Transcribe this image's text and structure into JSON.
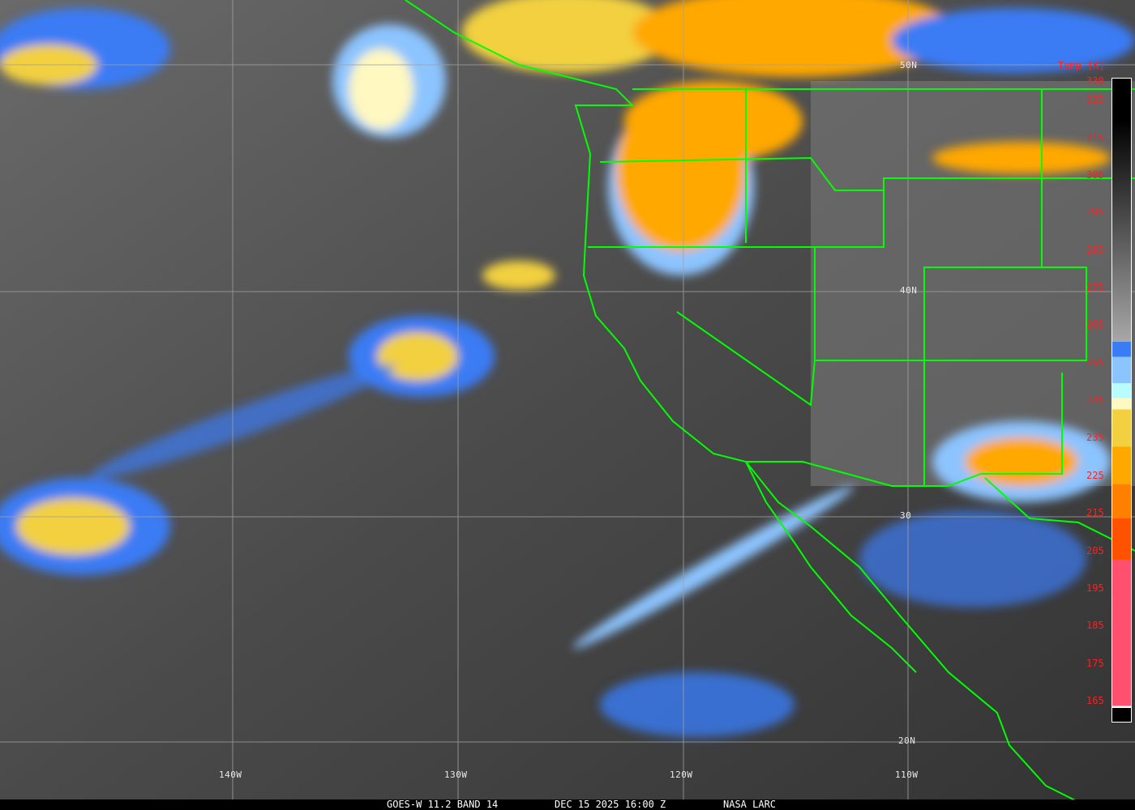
{
  "caption": {
    "satellite": "GOES-W 11.2 BAND 14",
    "datetime": "DEC 15 2025 16:00 Z",
    "source": "NASA LARC"
  },
  "colorbar": {
    "title": "Temp [K]",
    "ticks": [
      "330",
      "325",
      "315",
      "305",
      "295",
      "285",
      "275",
      "265",
      "255",
      "245",
      "235",
      "225",
      "215",
      "205",
      "195",
      "185",
      "175",
      "165"
    ],
    "colors": {
      "warm": "#000000",
      "cool_gray": "#a8a8a8",
      "blue": "#3a7cf5",
      "light_blue": "#8cc4ff",
      "cyan": "#b8fcff",
      "pale_yellow": "#fff8c0",
      "yellow": "#f2d040",
      "orange": "#ffa800",
      "dark_orange": "#ff8000",
      "red_orange": "#ff5200",
      "pink": "#ff5070"
    }
  },
  "latitude_labels": [
    "50N",
    "40N",
    "30",
    "20N"
  ],
  "longitude_labels": [
    "140W",
    "130W",
    "120W",
    "110W"
  ],
  "colors": {
    "borders": "#00ff00",
    "grid": "#a0a0a0"
  }
}
